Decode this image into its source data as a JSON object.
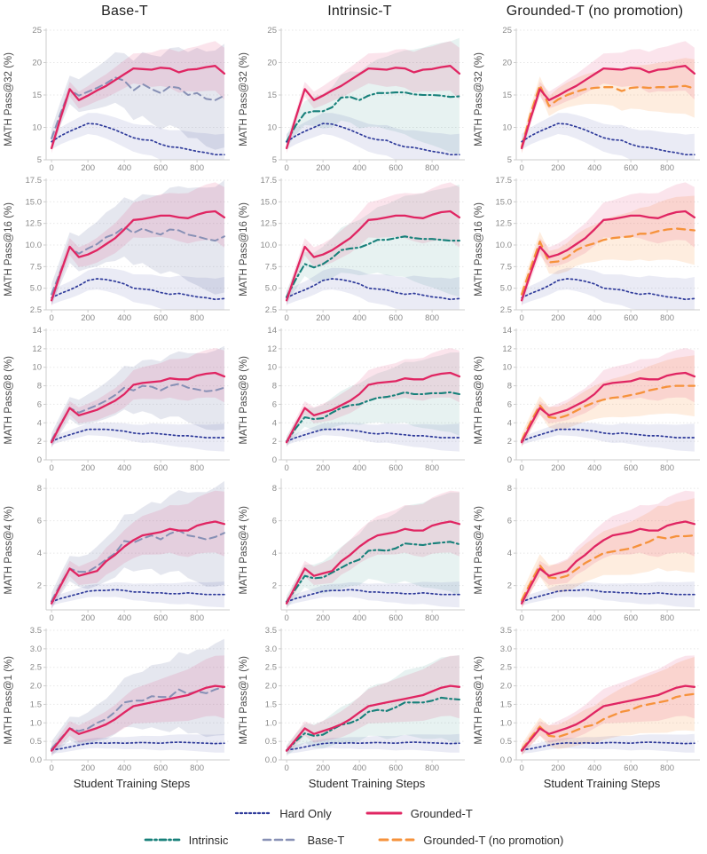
{
  "chart_data": {
    "type": "line",
    "layout": "5x3-grid-shared-series",
    "xlabel": "Student Training Steps",
    "x": [
      0,
      50,
      100,
      150,
      200,
      250,
      300,
      350,
      400,
      450,
      500,
      550,
      600,
      650,
      700,
      750,
      800,
      850,
      900,
      950
    ],
    "xlim": [
      -30,
      980
    ],
    "xtick_vals": [
      0,
      200,
      400,
      600,
      800
    ],
    "xtick_labels": [
      "0",
      "200",
      "400",
      "600",
      "800"
    ],
    "grid": "horizontal-dotted",
    "legend_position": "bottom-center",
    "columns": [
      {
        "key": "base-t",
        "title": "Base-T",
        "series": [
          "base_t",
          "hard_only",
          "grounded_t"
        ]
      },
      {
        "key": "intrinsic-t",
        "title": "Intrinsic-T",
        "series": [
          "intrinsic",
          "hard_only",
          "grounded_t"
        ]
      },
      {
        "key": "grounded-t-no-promotion",
        "title": "Grounded-T (no promotion)",
        "series": [
          "grounded_t_np",
          "hard_only",
          "grounded_t"
        ]
      }
    ],
    "series_styles": {
      "hard_only": {
        "label": "Hard Only",
        "color": "#2e3a9a",
        "band_opacity": 0.1,
        "dash": "2 3",
        "width": 1.7
      },
      "grounded_t": {
        "label": "Grounded-T",
        "color": "#e02562",
        "band_opacity": 0.12,
        "dash": "",
        "width": 2.3
      },
      "intrinsic": {
        "label": "Intrinsic",
        "color": "#17807a",
        "band_opacity": 0.1,
        "dash": "7 3.5 2 3.5",
        "width": 2.1
      },
      "base_t": {
        "label": "Base-T",
        "color": "#8790b5",
        "band_opacity": 0.22,
        "dash": "8 5",
        "width": 2.0
      },
      "grounded_t_np": {
        "label": "Grounded-T (no promotion)",
        "color": "#f6923b",
        "band_opacity": 0.16,
        "dash": "9 6",
        "width": 2.3
      }
    },
    "legend_rows": [
      [
        "hard_only",
        "grounded_t"
      ],
      [
        "intrinsic",
        "base_t",
        "grounded_t_np"
      ]
    ],
    "rows": [
      {
        "key": "pass32",
        "ylabel": "MATH Pass@32 (%)",
        "ylim": [
          5,
          25
        ],
        "ytick_vals": [
          5,
          10,
          15,
          20,
          25
        ],
        "ytick_labels": [
          "5",
          "10",
          "15",
          "20",
          "25"
        ],
        "series": {
          "hard_only": {
            "values": [
              7.8,
              8.7,
              9.4,
              10.0,
              10.6,
              10.5,
              10.1,
              9.6,
              9.0,
              8.4,
              8.1,
              8.0,
              7.4,
              7.0,
              6.9,
              6.6,
              6.3,
              6.1,
              5.8,
              5.8
            ],
            "band_hw": [
              1.2,
              3.2
            ]
          },
          "grounded_t": {
            "values": [
              6.8,
              11.5,
              15.9,
              14.2,
              14.9,
              15.7,
              16.4,
              17.3,
              18.2,
              19.1,
              19.0,
              18.9,
              19.2,
              19.1,
              18.5,
              18.9,
              19.0,
              19.3,
              19.5,
              18.3
            ],
            "band_hw": [
              0.8,
              4.0
            ]
          },
          "base_t": {
            "values": [
              8.3,
              12.2,
              15.8,
              14.9,
              15.5,
              16.1,
              16.8,
              17.7,
              17.2,
              15.7,
              16.7,
              15.9,
              15.3,
              16.3,
              16.1,
              15.0,
              15.3,
              14.4,
              14.2,
              14.9
            ],
            "band_hw": [
              1.5,
              8.0
            ]
          },
          "intrinsic": {
            "values": [
              7.8,
              10.3,
              12.2,
              12.5,
              12.5,
              13.1,
              14.6,
              14.7,
              14.2,
              14.9,
              15.3,
              15.3,
              15.4,
              15.4,
              15.1,
              15.0,
              15.0,
              14.9,
              14.7,
              14.8
            ],
            "band_hw": [
              1.0,
              9.0
            ]
          },
          "grounded_t_np": {
            "values": [
              7.0,
              12.2,
              16.5,
              13.3,
              14.3,
              15.0,
              15.5,
              15.9,
              16.1,
              16.2,
              16.2,
              15.6,
              16.1,
              16.2,
              16.1,
              16.2,
              16.2,
              16.3,
              16.4,
              16.0
            ],
            "band_hw": [
              1.0,
              4.5
            ]
          }
        }
      },
      {
        "key": "pass16",
        "ylabel": "MATH Pass@16 (%)",
        "ylim": [
          2.5,
          17.5
        ],
        "ytick_vals": [
          2.5,
          5.0,
          7.5,
          10.0,
          12.5,
          15.0,
          17.5
        ],
        "ytick_labels": [
          "2.5",
          "5.0",
          "7.5",
          "10.0",
          "12.5",
          "15.0",
          "17.5"
        ],
        "series": {
          "hard_only": {
            "values": [
              3.9,
              4.4,
              4.8,
              5.3,
              5.9,
              6.1,
              6.0,
              5.8,
              5.5,
              5.0,
              4.9,
              4.8,
              4.5,
              4.3,
              4.4,
              4.2,
              4.0,
              3.9,
              3.7,
              3.8
            ],
            "band_hw": [
              0.8,
              2.5
            ]
          },
          "grounded_t": {
            "values": [
              3.6,
              6.8,
              9.8,
              8.6,
              8.9,
              9.4,
              10.1,
              10.8,
              11.8,
              12.9,
              13.0,
              13.2,
              13.4,
              13.4,
              13.2,
              13.1,
              13.5,
              13.8,
              13.9,
              13.2
            ],
            "band_hw": [
              0.7,
              3.5
            ]
          },
          "base_t": {
            "values": [
              4.3,
              7.0,
              9.7,
              9.0,
              9.6,
              10.1,
              10.9,
              11.3,
              12.1,
              11.4,
              11.9,
              11.5,
              11.2,
              11.8,
              11.7,
              11.2,
              11.0,
              10.7,
              10.5,
              11.0
            ],
            "band_hw": [
              1.2,
              6.5
            ]
          },
          "intrinsic": {
            "values": [
              4.0,
              6.0,
              7.8,
              7.4,
              7.8,
              8.5,
              9.4,
              9.6,
              9.7,
              10.1,
              10.6,
              10.6,
              10.8,
              11.0,
              10.8,
              10.7,
              10.7,
              10.6,
              10.5,
              10.5
            ],
            "band_hw": [
              0.8,
              6.5
            ]
          },
          "grounded_t_np": {
            "values": [
              4.3,
              7.4,
              10.4,
              8.0,
              8.1,
              8.6,
              9.4,
              9.9,
              10.2,
              10.6,
              10.8,
              10.9,
              11.0,
              11.3,
              11.3,
              11.6,
              11.8,
              11.9,
              11.8,
              11.7
            ],
            "band_hw": [
              0.8,
              4.0
            ]
          }
        }
      },
      {
        "key": "pass8",
        "ylabel": "MATH Pass@8 (%)",
        "ylim": [
          0,
          14
        ],
        "ytick_vals": [
          0,
          2,
          4,
          6,
          8,
          10,
          12,
          14
        ],
        "ytick_labels": [
          "0",
          "2",
          "4",
          "6",
          "8",
          "10",
          "12",
          "14"
        ],
        "series": {
          "hard_only": {
            "values": [
              2.0,
              2.4,
              2.7,
              3.0,
              3.3,
              3.3,
              3.3,
              3.2,
              3.1,
              2.9,
              2.8,
              2.9,
              2.8,
              2.7,
              2.6,
              2.6,
              2.5,
              2.4,
              2.4,
              2.4
            ],
            "band_hw": [
              0.4,
              1.5
            ]
          },
          "grounded_t": {
            "values": [
              1.9,
              3.8,
              5.6,
              4.8,
              5.1,
              5.4,
              5.9,
              6.4,
              7.1,
              8.1,
              8.3,
              8.4,
              8.5,
              8.8,
              8.7,
              8.7,
              9.1,
              9.3,
              9.4,
              9.0
            ],
            "band_hw": [
              0.5,
              2.8
            ]
          },
          "base_t": {
            "values": [
              2.1,
              3.9,
              5.6,
              5.1,
              5.5,
              5.9,
              6.4,
              7.0,
              7.8,
              7.5,
              8.0,
              7.9,
              7.5,
              8.0,
              8.2,
              7.8,
              7.6,
              7.4,
              7.5,
              7.8
            ],
            "band_hw": [
              0.8,
              4.5
            ]
          },
          "intrinsic": {
            "values": [
              2.0,
              3.4,
              4.6,
              4.4,
              4.5,
              5.1,
              5.6,
              5.9,
              6.0,
              6.4,
              6.7,
              6.8,
              7.0,
              7.3,
              7.1,
              7.1,
              7.2,
              7.2,
              7.3,
              7.1
            ],
            "band_hw": [
              0.6,
              4.5
            ]
          },
          "grounded_t_np": {
            "values": [
              2.1,
              4.1,
              5.9,
              4.6,
              4.5,
              4.8,
              5.3,
              5.8,
              6.2,
              6.5,
              6.7,
              6.8,
              7.0,
              7.2,
              7.5,
              7.7,
              7.9,
              8.0,
              8.0,
              8.0
            ],
            "band_hw": [
              0.7,
              3.3
            ]
          }
        }
      },
      {
        "key": "pass4",
        "ylabel": "MATH Pass@4 (%)",
        "ylim": [
          0.5,
          8.5
        ],
        "ytick_vals": [
          2,
          4,
          6,
          8
        ],
        "ytick_labels": [
          "2",
          "4",
          "6",
          "8"
        ],
        "series": {
          "hard_only": {
            "values": [
              1.0,
              1.2,
              1.35,
              1.5,
              1.65,
              1.7,
              1.7,
              1.75,
              1.7,
              1.6,
              1.6,
              1.55,
              1.55,
              1.5,
              1.5,
              1.55,
              1.5,
              1.45,
              1.45,
              1.45
            ],
            "band_hw": [
              0.25,
              0.8
            ]
          },
          "grounded_t": {
            "values": [
              0.9,
              2.0,
              3.05,
              2.6,
              2.75,
              2.9,
              3.5,
              3.9,
              4.4,
              4.8,
              5.1,
              5.2,
              5.3,
              5.5,
              5.4,
              5.4,
              5.7,
              5.85,
              5.95,
              5.8
            ],
            "band_hw": [
              0.3,
              2.0
            ]
          },
          "base_t": {
            "values": [
              1.05,
              2.1,
              3.05,
              2.85,
              2.85,
              3.2,
              3.6,
              4.0,
              4.75,
              4.65,
              4.9,
              5.1,
              4.85,
              5.2,
              5.4,
              5.1,
              5.0,
              4.85,
              5.0,
              5.25
            ],
            "band_hw": [
              0.5,
              3.2
            ]
          },
          "intrinsic": {
            "values": [
              1.0,
              1.8,
              2.6,
              2.45,
              2.5,
              2.8,
              3.1,
              3.4,
              3.6,
              4.15,
              4.2,
              4.15,
              4.3,
              4.6,
              4.55,
              4.5,
              4.6,
              4.65,
              4.7,
              4.55
            ],
            "band_hw": [
              0.4,
              3.2
            ]
          },
          "grounded_t_np": {
            "values": [
              1.1,
              2.2,
              3.25,
              2.5,
              2.45,
              2.6,
              3.0,
              3.4,
              3.7,
              4.0,
              4.1,
              4.2,
              4.3,
              4.5,
              4.7,
              5.0,
              4.9,
              5.05,
              5.05,
              5.1
            ],
            "band_hw": [
              0.5,
              2.3
            ]
          }
        }
      },
      {
        "key": "pass1",
        "ylabel": "MATH Pass@1 (%)",
        "ylim": [
          0,
          3.5
        ],
        "ytick_vals": [
          0.0,
          0.5,
          1.0,
          1.5,
          2.0,
          2.5,
          3.0,
          3.5
        ],
        "ytick_labels": [
          "0.0",
          "0.5",
          "1.0",
          "1.5",
          "2.0",
          "2.5",
          "3.0",
          "3.5"
        ],
        "series": {
          "hard_only": {
            "values": [
              0.27,
              0.3,
              0.35,
              0.4,
              0.44,
              0.46,
              0.45,
              0.46,
              0.45,
              0.46,
              0.47,
              0.46,
              0.45,
              0.47,
              0.48,
              0.47,
              0.46,
              0.45,
              0.44,
              0.45
            ],
            "band_hw": [
              0.1,
              0.25
            ]
          },
          "grounded_t": {
            "values": [
              0.25,
              0.55,
              0.85,
              0.7,
              0.78,
              0.86,
              0.96,
              1.1,
              1.28,
              1.45,
              1.5,
              1.55,
              1.6,
              1.65,
              1.7,
              1.75,
              1.85,
              1.95,
              2.0,
              1.97
            ],
            "band_hw": [
              0.12,
              0.85
            ]
          },
          "base_t": {
            "values": [
              0.3,
              0.58,
              0.85,
              0.78,
              0.85,
              1.0,
              1.1,
              1.3,
              1.55,
              1.6,
              1.6,
              1.72,
              1.7,
              1.7,
              1.9,
              1.78,
              1.85,
              1.8,
              1.9,
              1.97
            ],
            "band_hw": [
              0.2,
              1.3
            ]
          },
          "intrinsic": {
            "values": [
              0.25,
              0.5,
              0.72,
              0.65,
              0.68,
              0.82,
              0.95,
              1.0,
              1.1,
              1.3,
              1.35,
              1.32,
              1.42,
              1.55,
              1.55,
              1.55,
              1.6,
              1.68,
              1.65,
              1.63
            ],
            "band_hw": [
              0.15,
              1.2
            ]
          },
          "grounded_t_np": {
            "values": [
              0.27,
              0.6,
              0.9,
              0.65,
              0.62,
              0.7,
              0.8,
              0.9,
              0.95,
              1.1,
              1.2,
              1.3,
              1.35,
              1.45,
              1.5,
              1.55,
              1.6,
              1.7,
              1.75,
              1.78
            ],
            "band_hw": [
              0.15,
              1.0
            ]
          }
        }
      }
    ],
    "theme": {
      "grid_color": "#e7e7e7",
      "spine_color": "#cccccc",
      "tick_label_color": "#8a8a8a",
      "axis_label_color": "#4a4a4a",
      "title_color": "#1f1f1f"
    }
  }
}
